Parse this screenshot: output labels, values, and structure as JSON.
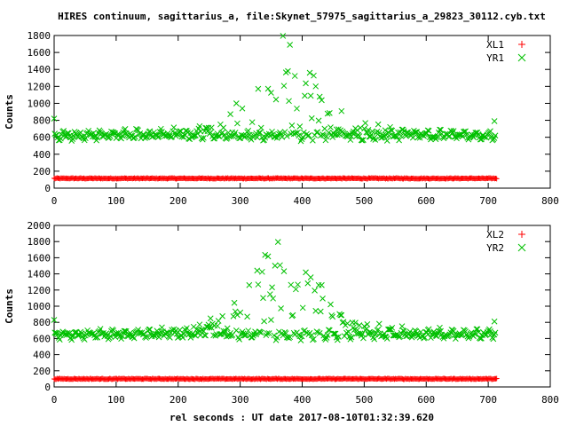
{
  "title": "HIRES continuum, sagittarius_a, file:Skynet_57975_sagittarius_a_29823_30112.cyb.txt",
  "xlabel": "rel seconds : UT date 2017-08-10T01:32:39.620",
  "colors": {
    "red": "#ff0000",
    "green": "#00c000",
    "axis": "#000000"
  },
  "chart_data": [
    {
      "type": "scatter",
      "ylabel": "Counts",
      "xlim": [
        0,
        800
      ],
      "ylim": [
        0,
        1800
      ],
      "xticks": [
        0,
        100,
        200,
        300,
        400,
        500,
        600,
        700,
        800
      ],
      "yticks": [
        0,
        200,
        400,
        600,
        800,
        1000,
        1200,
        1400,
        1600,
        1800
      ],
      "legend_position": "top-right",
      "series": [
        {
          "name": "XL1",
          "marker": "plus",
          "color": "#ff0000",
          "profile": {
            "x_range": [
              0,
              715
            ],
            "base": 115,
            "spread": 10
          }
        },
        {
          "name": "YR1",
          "marker": "cross",
          "color": "#00c000",
          "profile": {
            "x_range": [
              0,
              715
            ],
            "base": 620,
            "wobble": 55,
            "peak_x": 370,
            "peak_height": 1090,
            "peak_width": 65,
            "first_point": [
              0,
              820
            ],
            "last_point": [
              710,
              790
            ]
          }
        }
      ]
    },
    {
      "type": "scatter",
      "ylabel": "Counts",
      "xlim": [
        0,
        800
      ],
      "ylim": [
        0,
        2000
      ],
      "xticks": [
        0,
        100,
        200,
        300,
        400,
        500,
        600,
        700,
        800
      ],
      "yticks": [
        0,
        200,
        400,
        600,
        800,
        1000,
        1200,
        1400,
        1600,
        1800,
        2000
      ],
      "legend_position": "top-right",
      "series": [
        {
          "name": "XL2",
          "marker": "plus",
          "color": "#ff0000",
          "profile": {
            "x_range": [
              0,
              715
            ],
            "base": 100,
            "spread": 10
          }
        },
        {
          "name": "YR2",
          "marker": "cross",
          "color": "#00c000",
          "profile": {
            "x_range": [
              0,
              715
            ],
            "base": 650,
            "wobble": 55,
            "peak_x": 370,
            "peak_height": 1170,
            "peak_width": 65,
            "first_point": [
              0,
              830
            ],
            "last_point": [
              710,
              810
            ]
          }
        }
      ]
    }
  ]
}
